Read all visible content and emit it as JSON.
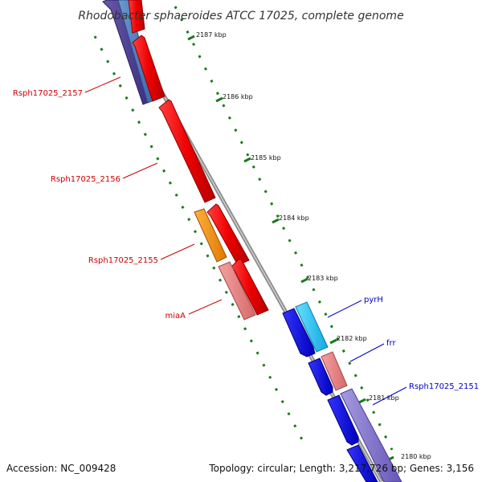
{
  "header": {
    "title": "Rhodobacter sphaeroides ATCC 17025, complete genome"
  },
  "footer": {
    "accession": "Accession: NC_009428",
    "summary": "Topology: circular; Length: 3,217,726 bp; Genes: 3,156"
  },
  "colors": {
    "backbone": "#8e8e8e",
    "tick": "#1a7a1a",
    "reverse_label": "#cc0000",
    "forward_label": "#0000cc"
  },
  "kbp_ticks": [
    {
      "label": "2187 kbp"
    },
    {
      "label": "2186 kbp"
    },
    {
      "label": "2185 kbp"
    },
    {
      "label": "2184 kbp"
    },
    {
      "label": "2183 kbp"
    },
    {
      "label": "2182 kbp"
    },
    {
      "label": "2181 kbp"
    },
    {
      "label": "2180 kbp"
    }
  ],
  "labels": [
    {
      "text": "Rsph17025_2157",
      "strand": "reverse"
    },
    {
      "text": "Rsph17025_2156",
      "strand": "reverse"
    },
    {
      "text": "Rsph17025_2155",
      "strand": "reverse"
    },
    {
      "text": "miaA",
      "strand": "reverse"
    },
    {
      "text": "pyrH",
      "strand": "forward"
    },
    {
      "text": "frr",
      "strand": "forward"
    },
    {
      "text": "Rsph17025_2151",
      "strand": "forward"
    }
  ]
}
